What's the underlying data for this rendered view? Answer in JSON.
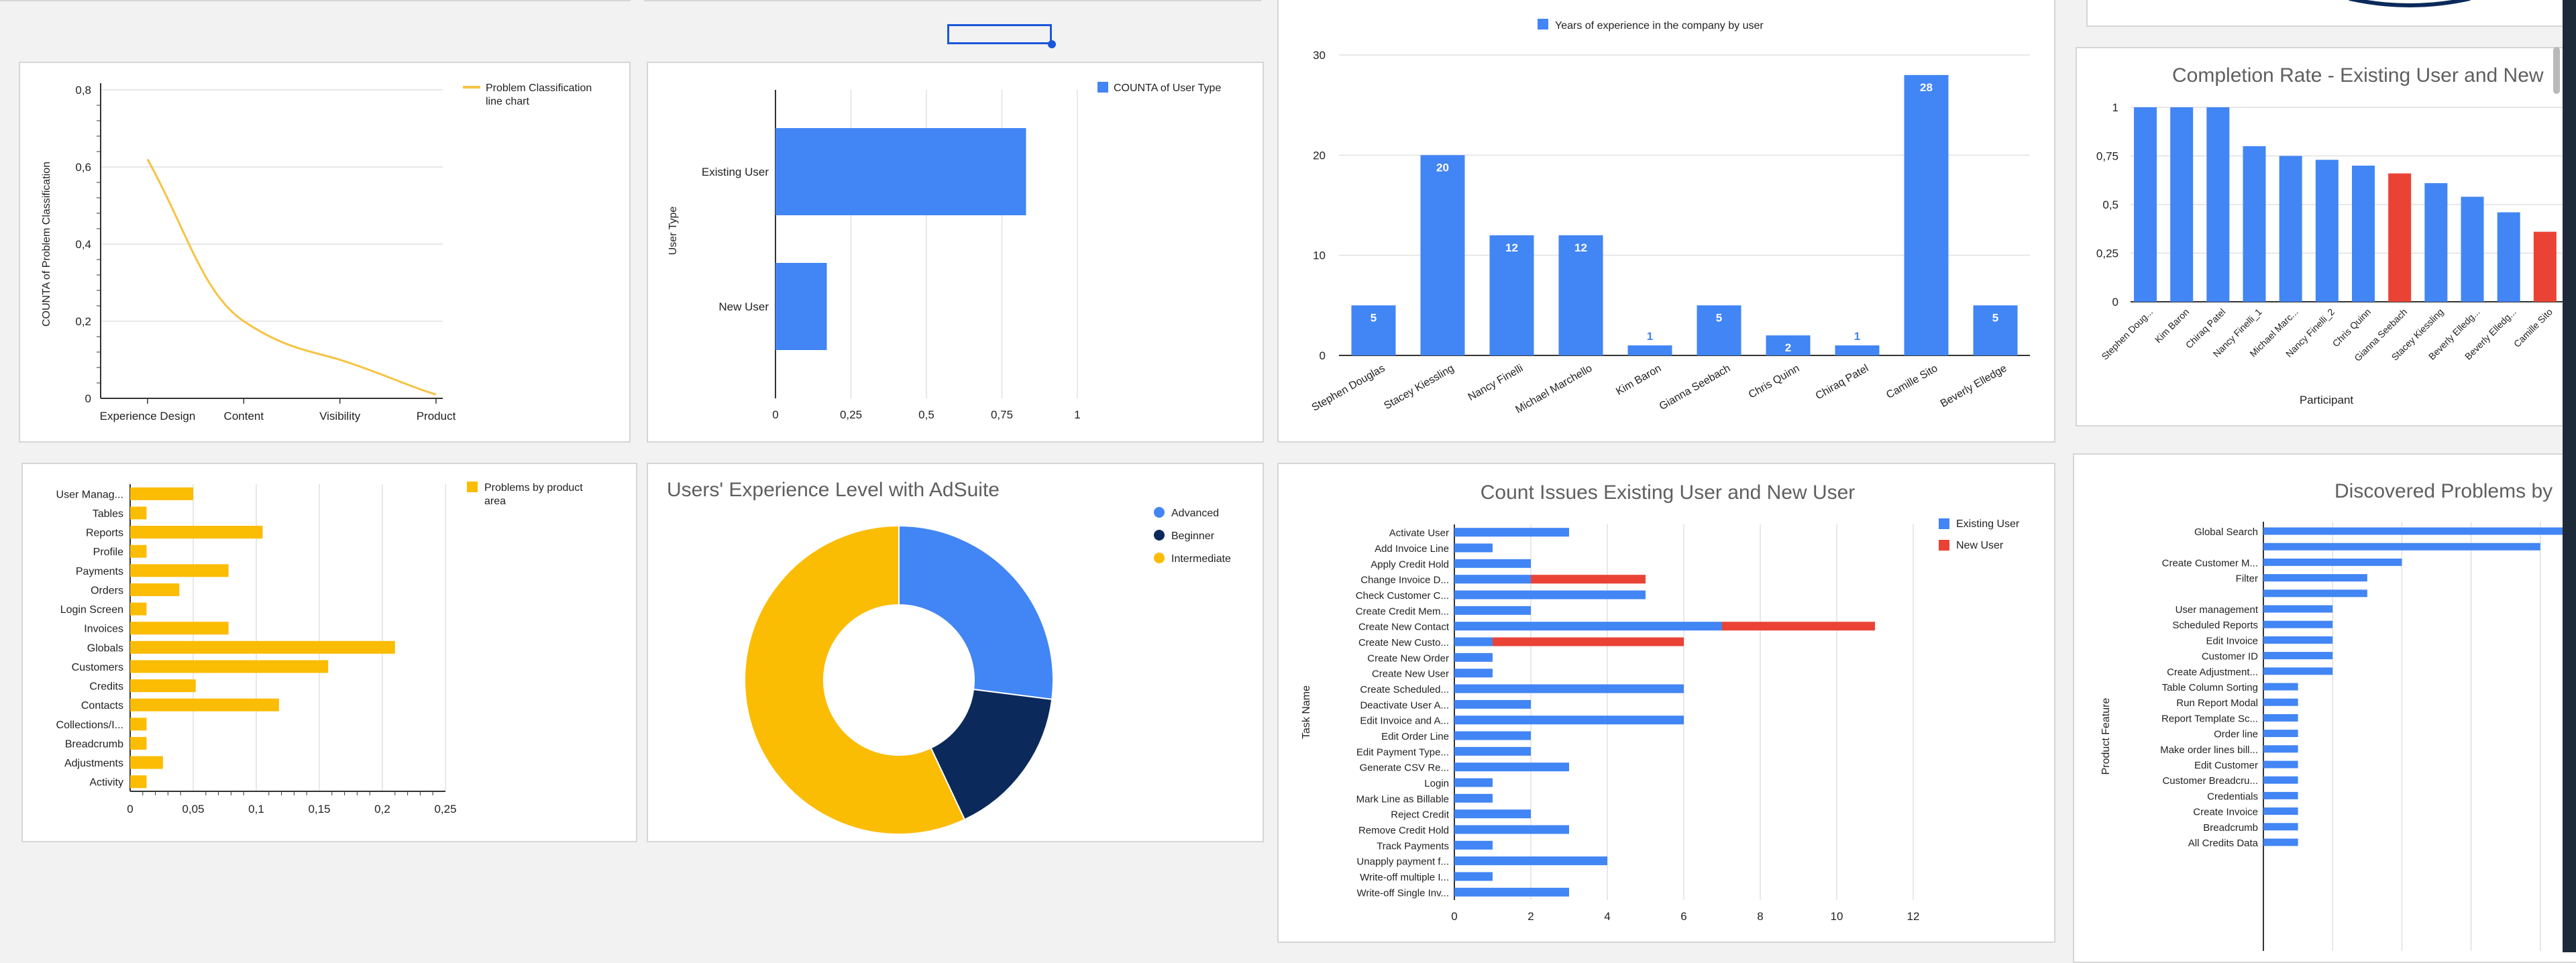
{
  "colors": {
    "blue": "#4285f4",
    "yellow_line": "#f6c343",
    "yellow_bar": "#fbbc04",
    "red": "#ea4335",
    "navy": "#0b2a5b",
    "axis": "#333333",
    "grid": "#e0e0e0"
  },
  "chart_data": [
    {
      "type": "line",
      "id": "problem-classification",
      "title": "",
      "ylabel": "COUNTA of Problem Classification",
      "xlabel": "",
      "categories": [
        "Experience Design",
        "Content",
        "Visibility",
        "Product"
      ],
      "series": [
        {
          "name": "Problem Classification line chart",
          "values": [
            0.62,
            0.2,
            0.1,
            0.01
          ]
        }
      ],
      "ylim": [
        0,
        0.8
      ],
      "yticks": [
        "0",
        "0,2",
        "0,4",
        "0,6",
        "0,8"
      ],
      "legend": "top-right",
      "grid": true
    },
    {
      "type": "bar",
      "id": "user-type",
      "orientation": "horizontal",
      "title": "",
      "ylabel": "User Type",
      "categories": [
        "Existing User",
        "New User"
      ],
      "series": [
        {
          "name": "COUNTA of User Type",
          "values": [
            0.83,
            0.17
          ]
        }
      ],
      "xlim": [
        0,
        1
      ],
      "xticks": [
        "0",
        "0,25",
        "0,5",
        "0,75",
        "1"
      ],
      "legend": "top-right",
      "grid": true
    },
    {
      "type": "bar",
      "id": "years-experience",
      "title": "",
      "categories": [
        "Stephen Douglas",
        "Stacey Kiessling",
        "Nancy Finelli",
        "Michael Marchello",
        "Kim Baron",
        "Gianna Seebach",
        "Chris Quinn",
        "Chiraq Patel",
        "Camille Sito",
        "Beverly Elledge"
      ],
      "series": [
        {
          "name": "Years of experience in the company by user",
          "values": [
            5,
            20,
            12,
            12,
            1,
            5,
            2,
            1,
            28,
            5
          ]
        }
      ],
      "ylim": [
        0,
        30
      ],
      "yticks": [
        "0",
        "10",
        "20",
        "30"
      ],
      "legend": "top",
      "grid": true
    },
    {
      "type": "bar",
      "id": "completion-rate",
      "title": "Completion Rate - Existing User and New",
      "xlabel": "Participant",
      "categories": [
        "Stephen Doug...",
        "Kim Baron",
        "Chiraq Patel",
        "Nancy Finelli_1",
        "Michael Marc...",
        "Nancy Finelli_2",
        "Chris Quinn",
        "Gianna Seebach",
        "Stacey Kiessling",
        "Beverly Elledg...",
        "Beverly Elledg...",
        "Camille Sito"
      ],
      "values": [
        1,
        1,
        1,
        0.8,
        0.75,
        0.73,
        0.7,
        0.66,
        0.61,
        0.54,
        0.46,
        0.36
      ],
      "highlight": [
        false,
        false,
        false,
        false,
        false,
        false,
        false,
        true,
        false,
        false,
        false,
        true
      ],
      "ylim": [
        0,
        1
      ],
      "yticks": [
        "0",
        "0,25",
        "0,5",
        "0,75",
        "1"
      ],
      "grid": true
    },
    {
      "type": "bar",
      "id": "problems-product-area",
      "orientation": "horizontal",
      "title": "",
      "categories": [
        "User Manag...",
        "Tables",
        "Reports",
        "Profile",
        "Payments",
        "Orders",
        "Login Screen",
        "Invoices",
        "Globals",
        "Customers",
        "Credits",
        "Contacts",
        "Collections/I...",
        "Breadcrumb",
        "Adjustments",
        "Activity"
      ],
      "series": [
        {
          "name": "Problems by product area",
          "values": [
            0.05,
            0.013,
            0.105,
            0.013,
            0.078,
            0.039,
            0.013,
            0.078,
            0.21,
            0.157,
            0.052,
            0.118,
            0.013,
            0.013,
            0.026,
            0.013
          ]
        }
      ],
      "xlim": [
        0,
        0.25
      ],
      "xticks": [
        "0",
        "0,05",
        "0,1",
        "0,15",
        "0,2",
        "0,25"
      ],
      "legend": "top-right",
      "grid": true
    },
    {
      "type": "pie",
      "id": "experience-level",
      "donut": true,
      "title": "Users' Experience Level with AdSuite",
      "slices": [
        {
          "name": "Advanced",
          "value": 27,
          "color": "#4285f4"
        },
        {
          "name": "Beginner",
          "value": 16,
          "color": "#0b2a5b"
        },
        {
          "name": "Intermediate",
          "value": 57,
          "color": "#fbbc04"
        }
      ],
      "legend": "right"
    },
    {
      "type": "bar",
      "id": "count-issues",
      "orientation": "horizontal",
      "stacked": true,
      "title": "Count Issues Existing User and New User",
      "ylabel": "Task Name",
      "categories": [
        "Activate User",
        "Add Invoice Line",
        "Apply Credit Hold",
        "Change Invoice D...",
        "Check Customer C...",
        "Create Credit Mem...",
        "Create New Contact",
        "Create New Custo...",
        "Create New Order",
        "Create New User",
        "Create Scheduled...",
        "Deactivate User A...",
        "Edit Invoice and A...",
        "Edit Order Line",
        "Edit Payment Type...",
        "Generate CSV Re...",
        "Login",
        "Mark Line as Billable",
        "Reject Credit",
        "Remove Credit Hold",
        "Track Payments",
        "Unapply payment f...",
        "Write-off multiple I...",
        "Write-off Single Inv..."
      ],
      "series": [
        {
          "name": "Existing User",
          "values": [
            3,
            1,
            2,
            2,
            5,
            2,
            7,
            1,
            1,
            1,
            6,
            2,
            6,
            2,
            2,
            3,
            1,
            1,
            2,
            3,
            1,
            4,
            1,
            3
          ]
        },
        {
          "name": "New User",
          "values": [
            0,
            0,
            0,
            3,
            0,
            0,
            4,
            5,
            0,
            0,
            0,
            0,
            0,
            0,
            0,
            0,
            0,
            0,
            0,
            0,
            0,
            0,
            0,
            0
          ]
        }
      ],
      "xlim": [
        0,
        12
      ],
      "xticks": [
        "0",
        "2",
        "4",
        "6",
        "8",
        "10",
        "12"
      ],
      "legend": "top-right",
      "grid": true
    },
    {
      "type": "bar",
      "id": "discovered-problems",
      "orientation": "horizontal",
      "title": "Discovered Problems by",
      "ylabel": "Product Feature",
      "categories": [
        "Global Search",
        "",
        "Create Customer M...",
        "Filter",
        "",
        "User management",
        "Scheduled Reports",
        "Edit Invoice",
        "Customer ID",
        "Create Adjustment...",
        "Table Column Sorting",
        "Run Report Modal",
        "Report Template Sc...",
        "Order line",
        "Make order lines bill...",
        "Edit Customer",
        "Customer Breadcru...",
        "Credentials",
        "Create Invoice",
        "Breadcrumb",
        "All Credits Data"
      ],
      "values": [
        10,
        8,
        4,
        3,
        3,
        2,
        2,
        2,
        2,
        2,
        1,
        1,
        1,
        1,
        1,
        1,
        1,
        1,
        1,
        1,
        1
      ],
      "grid": true
    }
  ]
}
